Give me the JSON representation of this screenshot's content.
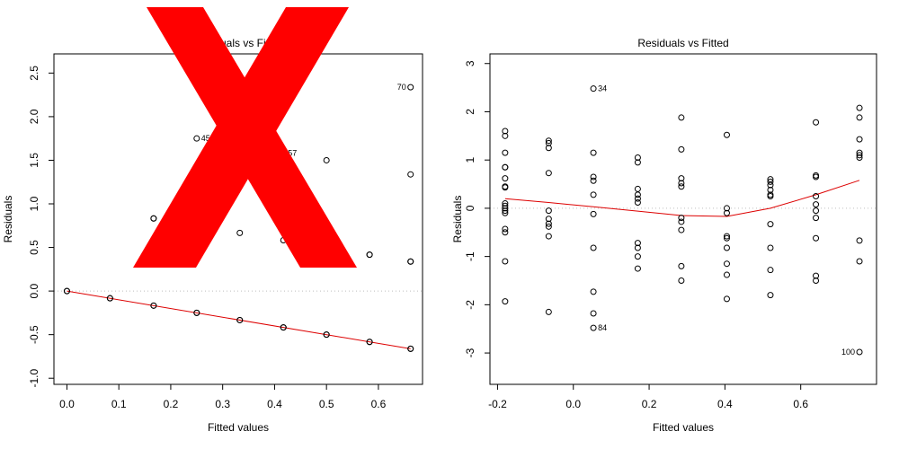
{
  "overlay": {
    "mark": "X",
    "color": "#ff0000"
  },
  "chart_data": [
    {
      "type": "scatter",
      "title": "Residuals vs Fitted",
      "xlabel": "Fitted values",
      "ylabel": "Residuals",
      "xlim": [
        -0.025,
        0.685
      ],
      "ylim": [
        -1.07,
        2.72
      ],
      "xticks": [
        0.0,
        0.1,
        0.2,
        0.3,
        0.4,
        0.5,
        0.6
      ],
      "xtick_labels": [
        "0.0",
        "0.1",
        "0.2",
        "0.3",
        "0.4",
        "0.5",
        "0.6"
      ],
      "yticks": [
        -1.0,
        -0.5,
        0.0,
        0.5,
        1.0,
        1.5,
        2.0,
        2.5
      ],
      "ytick_labels": [
        "-1.0",
        "-0.5",
        "0.0",
        "0.5",
        "1.0",
        "1.5",
        "2.0",
        "2.5"
      ],
      "reference_line_y": 0,
      "points": [
        {
          "x": 0.0,
          "y": 0.0
        },
        {
          "x": 0.0,
          "y": 0.0
        },
        {
          "x": 0.083,
          "y": -0.083
        },
        {
          "x": 0.083,
          "y": -0.083
        },
        {
          "x": 0.167,
          "y": -0.167
        },
        {
          "x": 0.167,
          "y": -0.167
        },
        {
          "x": 0.25,
          "y": -0.25
        },
        {
          "x": 0.25,
          "y": -0.25
        },
        {
          "x": 0.333,
          "y": -0.333
        },
        {
          "x": 0.333,
          "y": -0.333
        },
        {
          "x": 0.417,
          "y": -0.417
        },
        {
          "x": 0.417,
          "y": -0.417
        },
        {
          "x": 0.5,
          "y": -0.5
        },
        {
          "x": 0.5,
          "y": -0.5
        },
        {
          "x": 0.583,
          "y": -0.583
        },
        {
          "x": 0.583,
          "y": -0.583
        },
        {
          "x": 0.662,
          "y": -0.662
        },
        {
          "x": 0.662,
          "y": -0.662
        },
        {
          "x": 0.167,
          "y": 0.833
        },
        {
          "x": 0.167,
          "y": 0.833
        },
        {
          "x": 0.25,
          "y": 1.75
        },
        {
          "x": 0.333,
          "y": 0.667
        },
        {
          "x": 0.417,
          "y": 1.583
        },
        {
          "x": 0.417,
          "y": 0.583
        },
        {
          "x": 0.5,
          "y": 1.5
        },
        {
          "x": 0.583,
          "y": 0.417
        },
        {
          "x": 0.583,
          "y": 0.417
        },
        {
          "x": 0.662,
          "y": 2.338
        },
        {
          "x": 0.662,
          "y": 1.338
        },
        {
          "x": 0.662,
          "y": 0.338
        },
        {
          "x": 0.662,
          "y": 0.338
        }
      ],
      "point_labels": [
        {
          "x": 0.25,
          "y": 1.75,
          "text": "45",
          "side": "right"
        },
        {
          "x": 0.417,
          "y": 1.583,
          "text": "57",
          "side": "right"
        },
        {
          "x": 0.662,
          "y": 2.338,
          "text": "70",
          "side": "left"
        }
      ],
      "smooth_line": [
        {
          "x": 0.0,
          "y": 0.0
        },
        {
          "x": 0.662,
          "y": -0.662
        }
      ],
      "colors": {
        "points": "#000000",
        "smooth": "#dd0000",
        "reference": "#bfbfbf"
      }
    },
    {
      "type": "scatter",
      "title": "Residuals vs Fitted",
      "xlabel": "Fitted values",
      "ylabel": "Residuals",
      "xlim": [
        -0.22,
        0.8
      ],
      "ylim": [
        -3.65,
        3.2
      ],
      "xticks": [
        -0.2,
        0.0,
        0.2,
        0.4,
        0.6
      ],
      "xtick_labels": [
        "-0.2",
        "0.0",
        "0.2",
        "0.4",
        "0.6"
      ],
      "yticks": [
        -3,
        -2,
        -1,
        0,
        1,
        2,
        3
      ],
      "ytick_labels": [
        "-3",
        "-2",
        "-1",
        "0",
        "1",
        "2",
        "3"
      ],
      "reference_line_y": 0,
      "points": [
        {
          "x": -0.18,
          "y": 1.6
        },
        {
          "x": -0.18,
          "y": 1.5
        },
        {
          "x": -0.18,
          "y": 1.15
        },
        {
          "x": -0.18,
          "y": 0.85
        },
        {
          "x": -0.18,
          "y": 0.85
        },
        {
          "x": -0.18,
          "y": 0.62
        },
        {
          "x": -0.18,
          "y": 0.45
        },
        {
          "x": -0.18,
          "y": 0.43
        },
        {
          "x": -0.18,
          "y": 0.1
        },
        {
          "x": -0.18,
          "y": 0.05
        },
        {
          "x": -0.18,
          "y": 0.0
        },
        {
          "x": -0.18,
          "y": -0.05
        },
        {
          "x": -0.18,
          "y": -0.1
        },
        {
          "x": -0.18,
          "y": -0.43
        },
        {
          "x": -0.18,
          "y": -0.5
        },
        {
          "x": -0.18,
          "y": -1.1
        },
        {
          "x": -0.18,
          "y": -1.93
        },
        {
          "x": -0.065,
          "y": 1.4
        },
        {
          "x": -0.065,
          "y": 1.35
        },
        {
          "x": -0.065,
          "y": 1.25
        },
        {
          "x": -0.065,
          "y": 0.73
        },
        {
          "x": -0.065,
          "y": -0.05
        },
        {
          "x": -0.065,
          "y": -0.22
        },
        {
          "x": -0.065,
          "y": -0.32
        },
        {
          "x": -0.065,
          "y": -0.38
        },
        {
          "x": -0.065,
          "y": -0.58
        },
        {
          "x": -0.065,
          "y": -2.15
        },
        {
          "x": 0.053,
          "y": 2.48
        },
        {
          "x": 0.053,
          "y": 1.15
        },
        {
          "x": 0.053,
          "y": 0.65
        },
        {
          "x": 0.053,
          "y": 0.57
        },
        {
          "x": 0.053,
          "y": 0.28
        },
        {
          "x": 0.053,
          "y": -0.12
        },
        {
          "x": 0.053,
          "y": -0.82
        },
        {
          "x": 0.053,
          "y": -1.73
        },
        {
          "x": 0.053,
          "y": -2.18
        },
        {
          "x": 0.053,
          "y": -2.48
        },
        {
          "x": 0.17,
          "y": 1.05
        },
        {
          "x": 0.17,
          "y": 0.95
        },
        {
          "x": 0.17,
          "y": 0.4
        },
        {
          "x": 0.17,
          "y": 0.28
        },
        {
          "x": 0.17,
          "y": 0.2
        },
        {
          "x": 0.17,
          "y": 0.12
        },
        {
          "x": 0.17,
          "y": -0.72
        },
        {
          "x": 0.17,
          "y": -0.82
        },
        {
          "x": 0.17,
          "y": -1.0
        },
        {
          "x": 0.17,
          "y": -1.25
        },
        {
          "x": 0.285,
          "y": 1.88
        },
        {
          "x": 0.285,
          "y": 1.22
        },
        {
          "x": 0.285,
          "y": 0.62
        },
        {
          "x": 0.285,
          "y": 0.52
        },
        {
          "x": 0.285,
          "y": 0.45
        },
        {
          "x": 0.285,
          "y": -0.2
        },
        {
          "x": 0.285,
          "y": -0.28
        },
        {
          "x": 0.285,
          "y": -0.45
        },
        {
          "x": 0.285,
          "y": -1.2
        },
        {
          "x": 0.285,
          "y": -1.5
        },
        {
          "x": 0.405,
          "y": 1.52
        },
        {
          "x": 0.405,
          "y": 0.0
        },
        {
          "x": 0.405,
          "y": -0.1
        },
        {
          "x": 0.405,
          "y": -0.58
        },
        {
          "x": 0.405,
          "y": -0.62
        },
        {
          "x": 0.405,
          "y": -0.82
        },
        {
          "x": 0.405,
          "y": -1.15
        },
        {
          "x": 0.405,
          "y": -1.38
        },
        {
          "x": 0.405,
          "y": -1.88
        },
        {
          "x": 0.52,
          "y": 0.6
        },
        {
          "x": 0.52,
          "y": 0.55
        },
        {
          "x": 0.52,
          "y": 0.48
        },
        {
          "x": 0.52,
          "y": 0.38
        },
        {
          "x": 0.52,
          "y": 0.28
        },
        {
          "x": 0.52,
          "y": 0.25
        },
        {
          "x": 0.52,
          "y": -0.33
        },
        {
          "x": 0.52,
          "y": -0.82
        },
        {
          "x": 0.52,
          "y": -1.28
        },
        {
          "x": 0.52,
          "y": -1.8
        },
        {
          "x": 0.64,
          "y": 1.78
        },
        {
          "x": 0.64,
          "y": 0.68
        },
        {
          "x": 0.64,
          "y": 0.65
        },
        {
          "x": 0.64,
          "y": 0.25
        },
        {
          "x": 0.64,
          "y": 0.08
        },
        {
          "x": 0.64,
          "y": -0.05
        },
        {
          "x": 0.64,
          "y": -0.2
        },
        {
          "x": 0.64,
          "y": -0.62
        },
        {
          "x": 0.64,
          "y": -1.4
        },
        {
          "x": 0.64,
          "y": -1.5
        },
        {
          "x": 0.755,
          "y": 2.08
        },
        {
          "x": 0.755,
          "y": 1.88
        },
        {
          "x": 0.755,
          "y": 1.43
        },
        {
          "x": 0.755,
          "y": 1.15
        },
        {
          "x": 0.755,
          "y": 1.1
        },
        {
          "x": 0.755,
          "y": 1.05
        },
        {
          "x": 0.755,
          "y": -0.67
        },
        {
          "x": 0.755,
          "y": -1.1
        },
        {
          "x": 0.755,
          "y": -2.98
        }
      ],
      "point_labels": [
        {
          "x": 0.053,
          "y": 2.48,
          "text": "34",
          "side": "right"
        },
        {
          "x": 0.053,
          "y": -2.48,
          "text": "84",
          "side": "right"
        },
        {
          "x": 0.755,
          "y": -2.98,
          "text": "100",
          "side": "left"
        }
      ],
      "smooth_line": [
        {
          "x": -0.18,
          "y": 0.2
        },
        {
          "x": -0.065,
          "y": 0.12
        },
        {
          "x": 0.053,
          "y": 0.03
        },
        {
          "x": 0.17,
          "y": -0.06
        },
        {
          "x": 0.285,
          "y": -0.15
        },
        {
          "x": 0.405,
          "y": -0.17
        },
        {
          "x": 0.52,
          "y": 0.0
        },
        {
          "x": 0.64,
          "y": 0.28
        },
        {
          "x": 0.755,
          "y": 0.58
        }
      ],
      "colors": {
        "points": "#000000",
        "smooth": "#dd0000",
        "reference": "#bfbfbf"
      }
    }
  ]
}
